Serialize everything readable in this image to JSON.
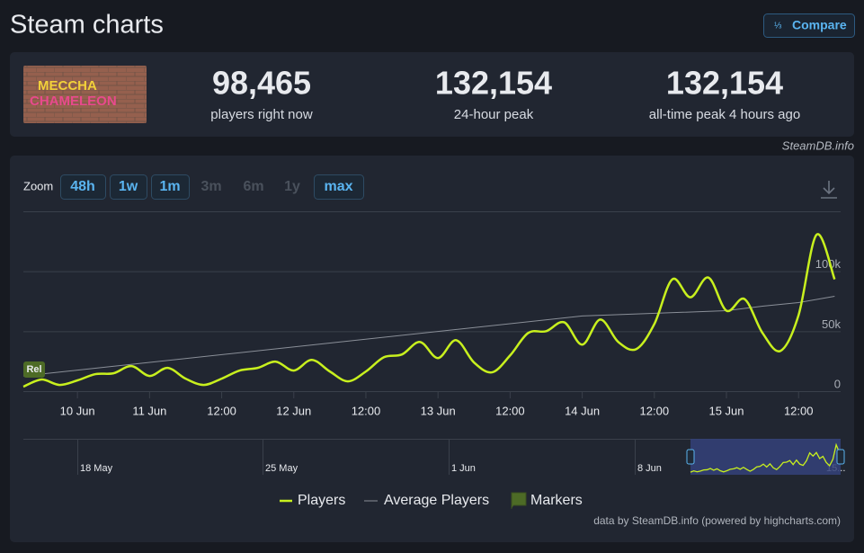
{
  "header": {
    "title": "Steam charts",
    "compare": "Compare"
  },
  "game_logo": [
    "MECCHA",
    "CHAMELEON"
  ],
  "stats": [
    {
      "value": "98,465",
      "label": "players right now"
    },
    {
      "value": "132,154",
      "label": "24-hour peak"
    },
    {
      "value": "132,154",
      "label": "all-time peak 4 hours ago"
    }
  ],
  "source": "SteamDB.info",
  "zoom": {
    "label": "Zoom",
    "options": [
      "48h",
      "1w",
      "1m",
      "3m",
      "6m",
      "1y",
      "max"
    ],
    "enabled": [
      true,
      true,
      true,
      false,
      false,
      false,
      true
    ]
  },
  "chart_data": {
    "type": "line",
    "xlim": [
      "10 Jun 03:00",
      "15 Jun 19:00"
    ],
    "xticks": [
      {
        "value": "10 Jun 12:00",
        "label": "10 Jun"
      },
      {
        "value": "11 Jun 00:00",
        "label": "11 Jun"
      },
      {
        "value": "11 Jun 12:00",
        "label": "12:00"
      },
      {
        "value": "12 Jun 00:00",
        "label": "12 Jun"
      },
      {
        "value": "12 Jun 12:00",
        "label": "12:00"
      },
      {
        "value": "13 Jun 00:00",
        "label": "13 Jun"
      },
      {
        "value": "13 Jun 12:00",
        "label": "12:00"
      },
      {
        "value": "14 Jun 00:00",
        "label": "14 Jun"
      },
      {
        "value": "14 Jun 12:00",
        "label": "12:00"
      },
      {
        "value": "15 Jun 00:00",
        "label": "15 Jun"
      },
      {
        "value": "15 Jun 12:00",
        "label": "12:00"
      }
    ],
    "ylim": [
      0,
      150000
    ],
    "yticks": [
      0,
      {
        "value": 50000,
        "label": "50k"
      },
      {
        "value": 100000,
        "label": "100k"
      }
    ],
    "grid": true,
    "series": [
      {
        "name": "Players",
        "color": "#c8f01e",
        "x": [
          "10 Jun 03:00",
          "10 Jun 06:00",
          "10 Jun 09:00",
          "10 Jun 12:00",
          "10 Jun 15:00",
          "10 Jun 18:00",
          "10 Jun 21:00",
          "11 Jun 00:00",
          "11 Jun 03:00",
          "11 Jun 06:00",
          "11 Jun 09:00",
          "11 Jun 12:00",
          "11 Jun 15:00",
          "11 Jun 18:00",
          "11 Jun 21:00",
          "12 Jun 00:00",
          "12 Jun 03:00",
          "12 Jun 06:00",
          "12 Jun 09:00",
          "12 Jun 12:00",
          "12 Jun 15:00",
          "12 Jun 18:00",
          "12 Jun 21:00",
          "13 Jun 00:00",
          "13 Jun 03:00",
          "13 Jun 06:00",
          "13 Jun 09:00",
          "13 Jun 12:00",
          "13 Jun 15:00",
          "13 Jun 18:00",
          "13 Jun 21:00",
          "14 Jun 00:00",
          "14 Jun 03:00",
          "14 Jun 06:00",
          "14 Jun 09:00",
          "14 Jun 12:00",
          "14 Jun 15:00",
          "14 Jun 18:00",
          "14 Jun 21:00",
          "15 Jun 00:00",
          "15 Jun 03:00",
          "15 Jun 06:00",
          "15 Jun 09:00",
          "15 Jun 12:00",
          "15 Jun 15:00",
          "15 Jun 18:00"
        ],
        "values": [
          3700,
          9700,
          5200,
          9000,
          14200,
          14900,
          20900,
          12700,
          19400,
          10400,
          5200,
          10400,
          17200,
          19400,
          24600,
          17200,
          26100,
          16400,
          8200,
          16400,
          28300,
          30600,
          41000,
          27600,
          42500,
          23900,
          15700,
          29800,
          48500,
          50000,
          57400,
          38800,
          59700,
          41000,
          35100,
          56000,
          93300,
          78300,
          94700,
          67100,
          76800,
          48500,
          33600,
          63400,
          130500,
          93300
        ]
      },
      {
        "name": "Average Players",
        "color": "#8a8f98",
        "x": [
          "10 Jun 03:00",
          "14 Jun 00:00",
          "15 Jun 00:00",
          "15 Jun 06:00",
          "15 Jun 12:00",
          "15 Jun 18:00"
        ],
        "values": [
          12700,
          62700,
          67100,
          70900,
          73900,
          79100
        ]
      }
    ],
    "marker": {
      "name": "Markers",
      "label": "Rel",
      "x": "10 Jun 03:00",
      "color": "#4d6b26"
    },
    "navigator": {
      "labels": [
        "18 May",
        "25 May",
        "1 Jun",
        "8 Jun",
        "15..."
      ]
    },
    "credits": "data by SteamDB.info (powered by highcharts.com)"
  }
}
